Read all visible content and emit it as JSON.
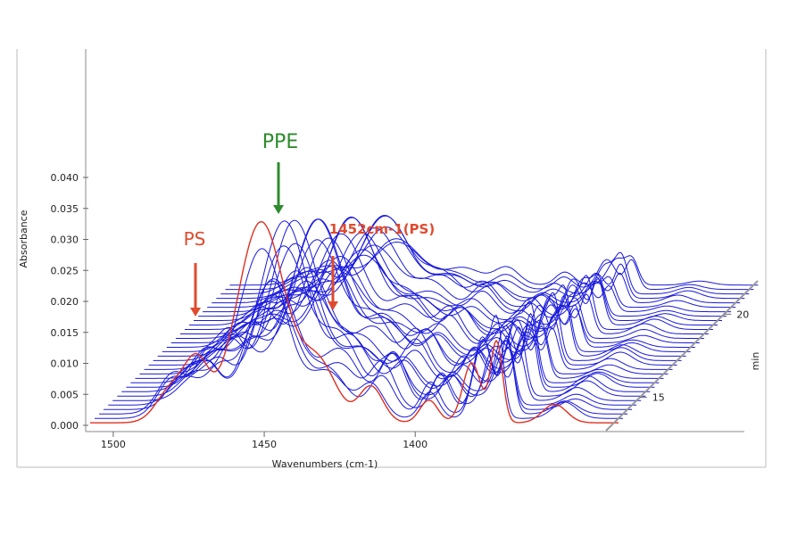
{
  "chart_data": {
    "type": "line",
    "title": "",
    "xlabel": "Wavenumbers (cm-1)",
    "ylabel": "Absorbance",
    "zlabel": "min",
    "x_reversed": true,
    "xlim": [
      1505,
      1330
    ],
    "ylim": [
      0.0,
      0.04
    ],
    "x_ticks": [
      {
        "value": 1500,
        "label": "1500"
      },
      {
        "value": 1450,
        "label": "1450"
      },
      {
        "value": 1400,
        "label": "1400"
      }
    ],
    "y_ticks": [
      {
        "value": 0.0,
        "label": "0.000"
      },
      {
        "value": 0.005,
        "label": "0.005"
      },
      {
        "value": 0.01,
        "label": "0.010"
      },
      {
        "value": 0.015,
        "label": "0.015"
      },
      {
        "value": 0.02,
        "label": "0.020"
      },
      {
        "value": 0.025,
        "label": "0.025"
      },
      {
        "value": 0.03,
        "label": "0.030"
      },
      {
        "value": 0.035,
        "label": "0.035"
      },
      {
        "value": 0.04,
        "label": "0.040"
      }
    ],
    "z_ticks": [
      {
        "value": 15,
        "label": "15"
      },
      {
        "value": 20,
        "label": "20"
      }
    ],
    "zlim": [
      13,
      22
    ],
    "series_count": 32,
    "series_color": "#1a1adc",
    "baseline_color": "#e03020",
    "peaks": [
      {
        "center": 1479,
        "width": 5,
        "height": 0.007
      },
      {
        "center": 1469,
        "width": 4,
        "height": 0.009
      },
      {
        "center": 1449,
        "width": 8,
        "height": 0.033
      },
      {
        "center": 1428,
        "width": 6,
        "height": 0.011
      },
      {
        "center": 1412,
        "width": 4,
        "height": 0.009
      },
      {
        "center": 1394,
        "width": 3,
        "height": 0.006
      },
      {
        "center": 1378,
        "width": 3,
        "height": 0.013
      },
      {
        "center": 1371,
        "width": 2,
        "height": 0.014
      },
      {
        "center": 1350,
        "width": 4,
        "height": 0.003
      }
    ],
    "annotations": [
      {
        "text": "PPE",
        "color": "#2e8b2e",
        "x": 1449
      },
      {
        "text": "PS",
        "color": "#e04a2e",
        "x": 1476
      },
      {
        "text": "1452cm-1(PS)",
        "color": "#e04a2e",
        "x": 1433
      }
    ]
  }
}
